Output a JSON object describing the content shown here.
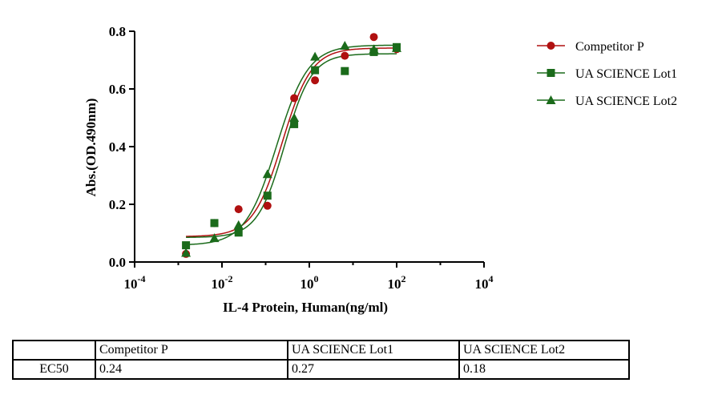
{
  "chart_data": {
    "type": "scatter",
    "xlabel": "IL-4 Protein, Human(ng/ml)",
    "ylabel": "Abs.(OD.490nm)",
    "x_scale": "log",
    "xlim": [
      0.0001,
      10000
    ],
    "ylim": [
      0,
      0.8
    ],
    "x_ticks": [
      {
        "value": 0.0001,
        "base": "10",
        "exp": "-4"
      },
      {
        "value": 0.01,
        "base": "10",
        "exp": "-2"
      },
      {
        "value": 1,
        "base": "10",
        "exp": "0"
      },
      {
        "value": 100,
        "base": "10",
        "exp": "2"
      },
      {
        "value": 10000,
        "base": "10",
        "exp": "4"
      }
    ],
    "y_ticks": [
      "0.0",
      "0.2",
      "0.4",
      "0.6",
      "0.8"
    ],
    "legend_position": "right",
    "series": [
      {
        "name": "Competitor  P",
        "color": "#b01010",
        "marker": "circle",
        "x": [
          0.0015,
          0.0067,
          0.024,
          0.11,
          0.45,
          1.35,
          6.5,
          30,
          100
        ],
        "y": [
          0.028,
          0.135,
          0.183,
          0.195,
          0.568,
          0.63,
          0.715,
          0.78,
          0.738
        ],
        "fit": {
          "bottom": 0.088,
          "top": 0.742,
          "ec50": 0.24,
          "hill": 1.3
        }
      },
      {
        "name": "UA SCIENCE Lot1",
        "color": "#1b6b1b",
        "marker": "square",
        "x": [
          0.0015,
          0.0067,
          0.024,
          0.11,
          0.45,
          1.35,
          6.5,
          30,
          100
        ],
        "y": [
          0.058,
          0.135,
          0.102,
          0.23,
          0.478,
          0.665,
          0.662,
          0.728,
          0.745
        ],
        "fit": {
          "bottom": 0.085,
          "top": 0.722,
          "ec50": 0.27,
          "hill": 1.4
        }
      },
      {
        "name": "UA SCIENCE Lot2",
        "color": "#1b6b1b",
        "marker": "triangle",
        "x": [
          0.0015,
          0.0067,
          0.024,
          0.11,
          0.45,
          1.35,
          6.5,
          30,
          100
        ],
        "y": [
          0.032,
          0.083,
          0.128,
          0.305,
          0.5,
          0.712,
          0.75,
          0.738,
          0.742
        ],
        "fit": {
          "bottom": 0.058,
          "top": 0.752,
          "ec50": 0.18,
          "hill": 1.2
        }
      }
    ]
  },
  "table": {
    "header": [
      "",
      "Competitor  P",
      "UA SCIENCE Lot1",
      "UA SCIENCE Lot2"
    ],
    "row": [
      "EC50",
      "0.24",
      "0.27",
      "0.18"
    ]
  }
}
